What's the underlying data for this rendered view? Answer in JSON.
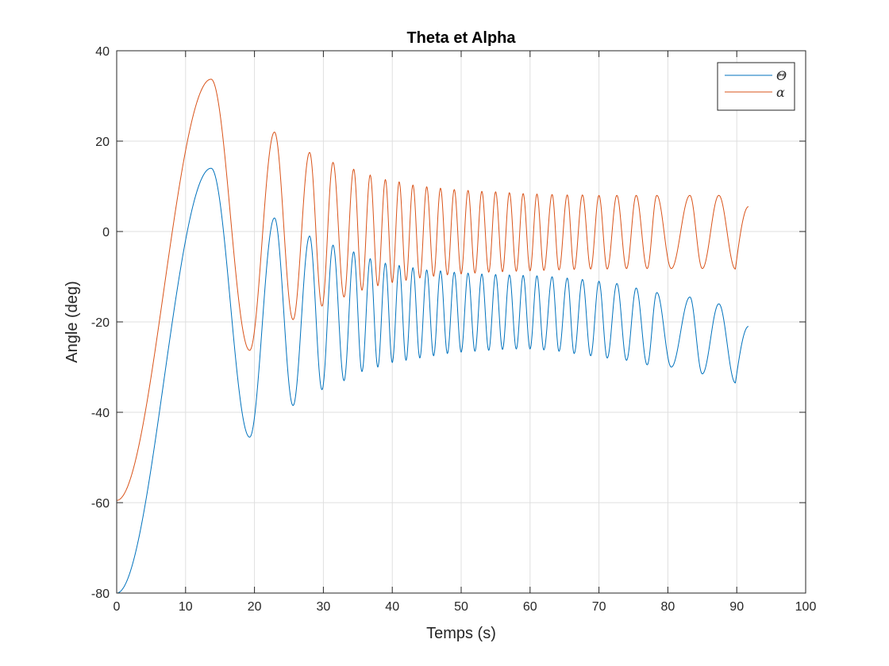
{
  "chart_data": {
    "type": "line",
    "title": "Theta et Alpha",
    "xlabel": "Temps (s)",
    "ylabel": "Angle (deg)",
    "xlim": [
      0,
      100
    ],
    "ylim": [
      -80,
      40
    ],
    "xticks": [
      0,
      10,
      20,
      30,
      40,
      50,
      60,
      70,
      80,
      90,
      100
    ],
    "yticks": [
      -80,
      -60,
      -40,
      -20,
      0,
      20,
      40
    ],
    "grid": true,
    "legend_position": "top-right",
    "x_end": 91.7,
    "series": [
      {
        "name": "Θ",
        "color": "#0072BD",
        "start": -80,
        "peaks": [
          [
            13.7,
            14
          ],
          [
            22.9,
            3
          ],
          [
            28.0,
            -1
          ],
          [
            31.4,
            -3
          ],
          [
            34.4,
            -4.5
          ],
          [
            36.8,
            -6
          ],
          [
            39.0,
            -7
          ],
          [
            41.0,
            -7.5
          ],
          [
            43.0,
            -8
          ],
          [
            45.0,
            -8.5
          ],
          [
            47.0,
            -8.7
          ],
          [
            49.0,
            -9
          ],
          [
            51.0,
            -9.2
          ],
          [
            53.0,
            -9.4
          ],
          [
            55.0,
            -9.5
          ],
          [
            57.0,
            -9.6
          ],
          [
            59.0,
            -9.7
          ],
          [
            61.0,
            -9.8
          ],
          [
            63.2,
            -10
          ],
          [
            65.4,
            -10.3
          ],
          [
            67.6,
            -10.6
          ],
          [
            70.0,
            -11
          ],
          [
            72.6,
            -11.5
          ],
          [
            75.4,
            -12.5
          ],
          [
            78.4,
            -13.5
          ],
          [
            83.2,
            -14.5
          ],
          [
            87.4,
            -16
          ],
          [
            91.7,
            -21
          ]
        ],
        "troughs": [
          [
            19.3,
            -45.5
          ],
          [
            25.6,
            -38.5
          ],
          [
            29.8,
            -35
          ],
          [
            33.0,
            -33
          ],
          [
            35.6,
            -31
          ],
          [
            37.9,
            -30
          ],
          [
            40.0,
            -29
          ],
          [
            42.0,
            -28.5
          ],
          [
            44.0,
            -28
          ],
          [
            46.0,
            -27.5
          ],
          [
            48.0,
            -27
          ],
          [
            50.0,
            -26.7
          ],
          [
            52.0,
            -26.5
          ],
          [
            54.0,
            -26.3
          ],
          [
            56.0,
            -26.1
          ],
          [
            58.0,
            -26
          ],
          [
            60.0,
            -26
          ],
          [
            62.0,
            -26.2
          ],
          [
            64.2,
            -26.5
          ],
          [
            66.4,
            -27
          ],
          [
            68.8,
            -27.5
          ],
          [
            71.2,
            -28
          ],
          [
            74.0,
            -28.5
          ],
          [
            77.0,
            -29.5
          ],
          [
            80.5,
            -30
          ],
          [
            85.0,
            -31.5
          ],
          [
            89.8,
            -33.5
          ]
        ]
      },
      {
        "name": "α",
        "color": "#D95319",
        "start": -59.5,
        "peaks": [
          [
            13.7,
            33.7
          ],
          [
            22.9,
            22
          ],
          [
            28.0,
            17.5
          ],
          [
            31.4,
            15.3
          ],
          [
            34.4,
            13.8
          ],
          [
            36.8,
            12.5
          ],
          [
            39.0,
            11.5
          ],
          [
            41.0,
            11
          ],
          [
            43.0,
            10.3
          ],
          [
            45.0,
            9.9
          ],
          [
            47.0,
            9.6
          ],
          [
            49.0,
            9.3
          ],
          [
            51.0,
            9.1
          ],
          [
            53.0,
            8.9
          ],
          [
            55.0,
            8.8
          ],
          [
            57.0,
            8.6
          ],
          [
            59.0,
            8.4
          ],
          [
            61.0,
            8.3
          ],
          [
            63.2,
            8.2
          ],
          [
            65.4,
            8.1
          ],
          [
            67.6,
            8.1
          ],
          [
            70.0,
            8
          ],
          [
            72.6,
            8
          ],
          [
            75.4,
            8
          ],
          [
            78.4,
            8
          ],
          [
            83.2,
            8
          ],
          [
            87.4,
            8
          ],
          [
            91.7,
            5.5
          ]
        ],
        "troughs": [
          [
            19.3,
            -26.3
          ],
          [
            25.6,
            -19.5
          ],
          [
            29.8,
            -16.5
          ],
          [
            33.0,
            -14.5
          ],
          [
            35.6,
            -13
          ],
          [
            37.9,
            -12
          ],
          [
            40.0,
            -11.3
          ],
          [
            42.0,
            -10.8
          ],
          [
            44.0,
            -10.3
          ],
          [
            46.0,
            -9.9
          ],
          [
            48.0,
            -9.6
          ],
          [
            50.0,
            -9.4
          ],
          [
            52.0,
            -9.2
          ],
          [
            54.0,
            -9
          ],
          [
            56.0,
            -8.9
          ],
          [
            58.0,
            -8.8
          ],
          [
            60.0,
            -8.7
          ],
          [
            62.0,
            -8.6
          ],
          [
            64.2,
            -8.5
          ],
          [
            66.4,
            -8.4
          ],
          [
            68.8,
            -8.3
          ],
          [
            71.2,
            -8.3
          ],
          [
            74.0,
            -8.2
          ],
          [
            77.0,
            -8.2
          ],
          [
            80.5,
            -8.2
          ],
          [
            85.0,
            -8.2
          ],
          [
            89.8,
            -8.3
          ]
        ]
      }
    ]
  }
}
